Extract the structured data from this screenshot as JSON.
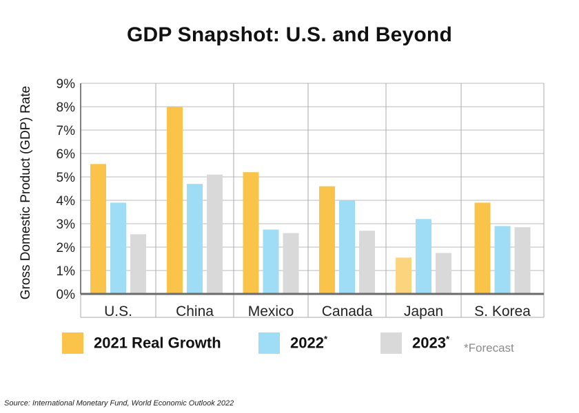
{
  "chart_data": {
    "type": "bar",
    "title": "GDP Snapshot: U.S. and Beyond",
    "ylabel": "Gross Domestic Product (GDP) Rate",
    "xlabel": "",
    "ylim": [
      0,
      9
    ],
    "yticks": [
      "0%",
      "1%",
      "2%",
      "3%",
      "4%",
      "5%",
      "6%",
      "7%",
      "8%",
      "9%"
    ],
    "categories": [
      "U.S.",
      "China",
      "Mexico",
      "Canada",
      "Japan",
      "S. Korea"
    ],
    "series": [
      {
        "name": "2021 Real Growth",
        "color": "#f9c449",
        "values": [
          5.55,
          8.0,
          5.2,
          4.6,
          1.55,
          3.9
        ]
      },
      {
        "name": "2022*",
        "color": "#9fdcf6",
        "values": [
          3.9,
          4.7,
          2.75,
          4.0,
          3.2,
          2.9
        ]
      },
      {
        "name": "2023*",
        "color": "#d9d9da",
        "values": [
          2.55,
          5.1,
          2.6,
          2.7,
          1.75,
          2.85
        ]
      }
    ],
    "highlight": {
      "category": "Japan",
      "series": "2021 Real Growth",
      "color": "#fcd47d"
    },
    "grid": true,
    "legend": "bottom",
    "footnote": "*Forecast",
    "source": "Source: International Monetary Fund, World Economic Outlook 2022"
  },
  "legend": {
    "items": [
      {
        "label": "2021 Real Growth",
        "sup": ""
      },
      {
        "label": "2022",
        "sup": "*"
      },
      {
        "label": "2023",
        "sup": "*"
      }
    ]
  }
}
